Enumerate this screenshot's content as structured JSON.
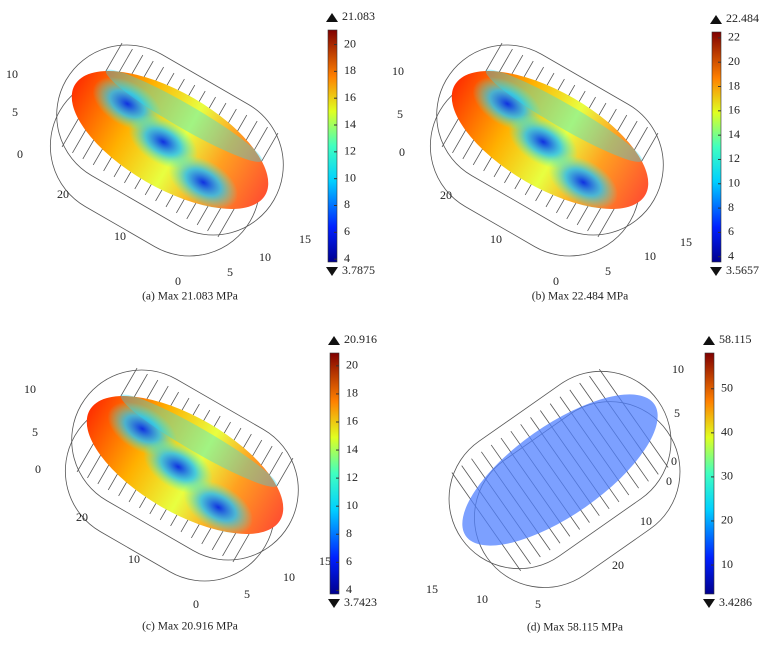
{
  "panels": [
    {
      "caption": "(a)  Max 21.083 MPa",
      "colorbar": {
        "max": 21.083,
        "min": 3.7875,
        "ticks": [
          4,
          6,
          8,
          10,
          12,
          14,
          16,
          18,
          20
        ]
      },
      "axis_labels": [
        10,
        5,
        0,
        20,
        10,
        0,
        5,
        10,
        15
      ]
    },
    {
      "caption": "(b)  Max 22.484 MPa",
      "colorbar": {
        "max": 22.484,
        "min": 3.5657,
        "ticks": [
          4,
          6,
          8,
          10,
          12,
          14,
          16,
          18,
          20,
          22
        ]
      },
      "axis_labels": [
        10,
        5,
        0,
        20,
        10,
        0,
        5,
        10,
        15
      ]
    },
    {
      "caption": "(c)  Max 20.916 MPa",
      "colorbar": {
        "max": 20.916,
        "min": 3.7423,
        "ticks": [
          4,
          6,
          8,
          10,
          12,
          14,
          16,
          18,
          20
        ]
      },
      "axis_labels": [
        10,
        5,
        0,
        20,
        10,
        0,
        5,
        10,
        15
      ]
    },
    {
      "caption": "(d)  Max 58.115 MPa",
      "colorbar": {
        "max": 58.115,
        "min": 3.4286,
        "ticks": [
          10,
          20,
          30,
          40,
          50
        ]
      },
      "axis_labels": [
        10,
        5,
        0,
        0,
        10,
        20,
        15,
        10,
        5
      ]
    }
  ]
}
